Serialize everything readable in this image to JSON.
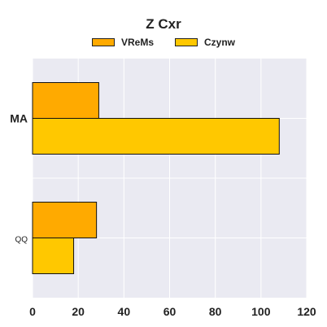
{
  "chart_data": {
    "type": "bar",
    "orientation": "horizontal",
    "title": "Z Cxr",
    "xlabel": "",
    "ylabel": "",
    "categories": [
      "MA",
      "QQ"
    ],
    "series": [
      {
        "name": "VReMs",
        "color": "#FFAA00",
        "values": [
          29,
          28
        ]
      },
      {
        "name": "Czynw",
        "color": "#FFC800",
        "values": [
          108,
          18
        ]
      }
    ],
    "xlim": [
      0,
      120
    ],
    "xticks": [
      0,
      20,
      40,
      60,
      80,
      100,
      120
    ],
    "grid": true,
    "legend_position": "top-center"
  }
}
